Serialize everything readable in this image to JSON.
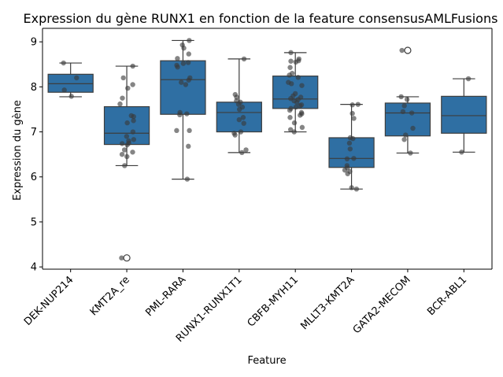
{
  "chart_data": {
    "type": "box",
    "title": "Expression du gène RUNX1 en fonction de la feature consensusAMLFusions",
    "xlabel": "Feature",
    "ylabel": "Expression du gène",
    "ylim": [
      3.95,
      9.3
    ],
    "yticks": [
      4,
      5,
      6,
      7,
      8,
      9
    ],
    "grid": false,
    "box_color": "#2f6fa3",
    "point_color": "#3a3a3a",
    "categories": [
      "DEK-NUP214",
      "KMT2A_re",
      "PML-RARA",
      "RUNX1-RUNX1T1",
      "CBFB-MYH11",
      "MLLT3-KMT2A",
      "GATA2-MECOM",
      "BCR-ABL1"
    ],
    "boxes": [
      {
        "category": "DEK-NUP214",
        "whislo": 7.78,
        "q1": 7.88,
        "med": 8.07,
        "q3": 8.28,
        "whishi": 8.53,
        "fliers": []
      },
      {
        "category": "KMT2A_re",
        "whislo": 6.25,
        "q1": 6.72,
        "med": 6.97,
        "q3": 7.56,
        "whishi": 8.46,
        "fliers": [
          4.2
        ]
      },
      {
        "category": "PML-RARA",
        "whislo": 5.95,
        "q1": 7.39,
        "med": 8.16,
        "q3": 8.58,
        "whishi": 9.03,
        "fliers": []
      },
      {
        "category": "RUNX1-RUNX1T1",
        "whislo": 6.54,
        "q1": 7.0,
        "med": 7.43,
        "q3": 7.66,
        "whishi": 8.62,
        "fliers": []
      },
      {
        "category": "CBFB-MYH11",
        "whislo": 7.0,
        "q1": 7.52,
        "med": 7.73,
        "q3": 8.24,
        "whishi": 8.76,
        "fliers": []
      },
      {
        "category": "MLLT3-KMT2A",
        "whislo": 5.73,
        "q1": 6.21,
        "med": 6.41,
        "q3": 6.87,
        "whishi": 7.61,
        "fliers": []
      },
      {
        "category": "GATA2-MECOM",
        "whislo": 6.53,
        "q1": 6.91,
        "med": 7.42,
        "q3": 7.64,
        "whishi": 7.78,
        "fliers": [
          8.81
        ]
      },
      {
        "category": "BCR-ABL1",
        "whislo": 6.55,
        "q1": 6.97,
        "med": 7.36,
        "q3": 7.79,
        "whishi": 8.18,
        "fliers": []
      }
    ],
    "points": [
      {
        "category": "DEK-NUP214",
        "values": [
          8.53,
          8.2,
          7.93,
          7.79
        ]
      },
      {
        "category": "KMT2A_re",
        "values": [
          8.46,
          8.2,
          8.05,
          7.97,
          7.75,
          7.62,
          7.36,
          7.34,
          7.25,
          7.2,
          7.0,
          6.9,
          6.83,
          6.8,
          6.75,
          6.74,
          6.71,
          6.6,
          6.55,
          6.5,
          6.45,
          6.25,
          4.2
        ]
      },
      {
        "category": "PML-RARA",
        "values": [
          9.03,
          8.93,
          8.86,
          8.73,
          8.63,
          8.54,
          8.52,
          8.48,
          8.44,
          8.2,
          8.15,
          8.1,
          8.05,
          7.43,
          7.4,
          7.38,
          7.03,
          7.03,
          6.68,
          5.95
        ]
      },
      {
        "category": "RUNX1-RUNX1T1",
        "values": [
          8.62,
          7.83,
          7.77,
          7.69,
          7.66,
          7.61,
          7.55,
          7.5,
          7.32,
          7.27,
          7.19,
          7.0,
          6.97,
          6.93,
          6.6,
          6.54
        ]
      },
      {
        "category": "CBFB-MYH11",
        "values": [
          8.76,
          8.62,
          8.58,
          8.57,
          8.55,
          8.43,
          8.3,
          8.26,
          8.21,
          8.1,
          8.07,
          8.03,
          7.85,
          7.8,
          7.77,
          7.74,
          7.72,
          7.69,
          7.65,
          7.6,
          7.58,
          7.55,
          7.52,
          7.48,
          7.43,
          7.4,
          7.37,
          7.32,
          7.2,
          7.1,
          7.05,
          7.0
        ]
      },
      {
        "category": "MLLT3-KMT2A",
        "values": [
          7.61,
          7.6,
          7.41,
          7.3,
          6.87,
          6.85,
          6.75,
          6.62,
          6.41,
          6.4,
          6.25,
          6.2,
          6.15,
          6.12,
          6.07,
          5.76,
          5.73
        ]
      },
      {
        "category": "GATA2-MECOM",
        "values": [
          8.81,
          7.78,
          7.72,
          7.58,
          7.45,
          7.42,
          7.08,
          6.93,
          6.83,
          6.53
        ]
      },
      {
        "category": "BCR-ABL1",
        "values": [
          8.18,
          6.55
        ]
      }
    ]
  }
}
